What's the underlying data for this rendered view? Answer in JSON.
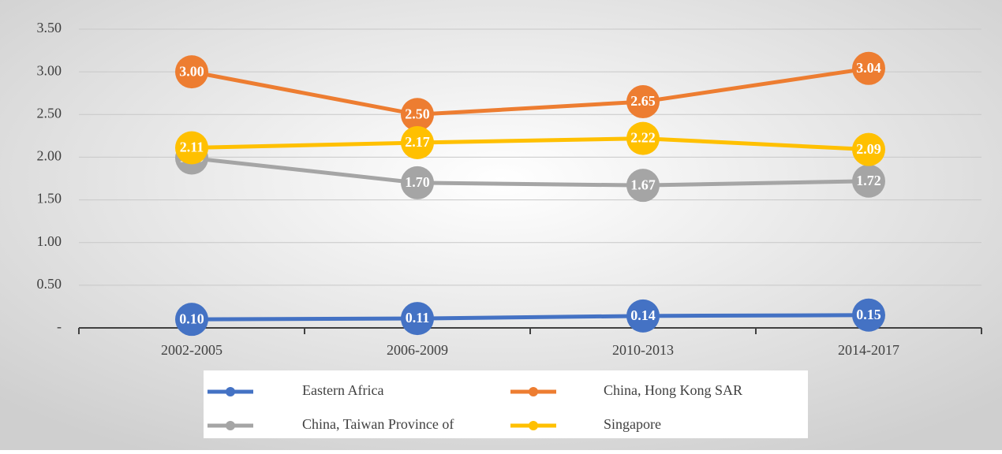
{
  "chart_data": {
    "type": "line",
    "categories": [
      "2002-2005",
      "2006-2009",
      "2010-2013",
      "2014-2017"
    ],
    "series": [
      {
        "name": "Eastern Africa",
        "color": "#4472c4",
        "values": [
          0.1,
          0.11,
          0.14,
          0.15
        ],
        "value_labels": [
          "0.10",
          "0.11",
          "0.14",
          "0.15"
        ]
      },
      {
        "name": "China, Hong Kong SAR",
        "color": "#ed7d31",
        "values": [
          3.0,
          2.5,
          2.65,
          3.04
        ],
        "value_labels": [
          "3.00",
          "2.50",
          "2.65",
          "3.04"
        ]
      },
      {
        "name": "China, Taiwan Province of",
        "color": "#a5a5a5",
        "values": [
          1.99,
          1.7,
          1.67,
          1.72
        ],
        "value_labels": [
          "1.99",
          "1.70",
          "1.67",
          "1.72"
        ]
      },
      {
        "name": "Singapore",
        "color": "#ffc000",
        "values": [
          2.11,
          2.17,
          2.22,
          2.09
        ],
        "value_labels": [
          "2.11",
          "2.17",
          "2.22",
          "2.09"
        ]
      }
    ],
    "ylim": [
      0,
      3.5
    ],
    "yticks": [
      {
        "value": 0,
        "label": "-"
      },
      {
        "value": 0.5,
        "label": "0.50"
      },
      {
        "value": 1,
        "label": "1.00"
      },
      {
        "value": 1.5,
        "label": "1.50"
      },
      {
        "value": 2,
        "label": "2.00"
      },
      {
        "value": 2.5,
        "label": "2.50"
      },
      {
        "value": 3,
        "label": "3.00"
      },
      {
        "value": 3.5,
        "label": "3.50"
      }
    ],
    "grid": true,
    "legend": "bottom"
  }
}
